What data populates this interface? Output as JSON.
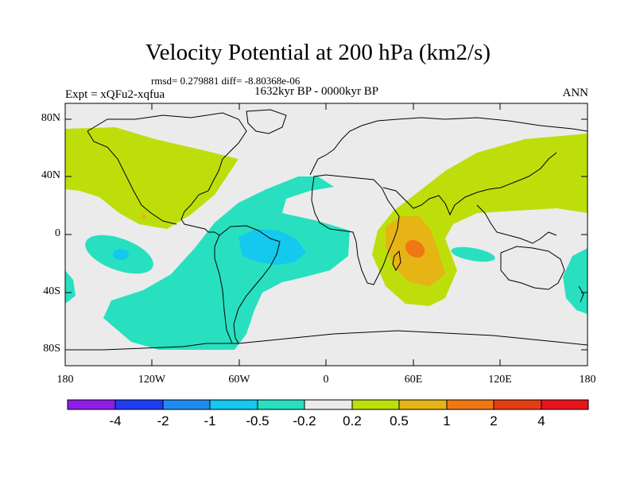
{
  "title": "Velocity Potential at 200 hPa (km2/s)",
  "stats": "rmsd= 0.279881 diff= -8.80368e-06",
  "period": "1632kyr BP - 0000kyr BP",
  "experiment": "Expt = xQFu2-xqfua",
  "season": "ANN",
  "lat_labels": [
    "80N",
    "40N",
    "0",
    "40S",
    "80S"
  ],
  "lon_labels": [
    "180",
    "120W",
    "60W",
    "0",
    "60E",
    "120E",
    "180"
  ],
  "colorbar": {
    "labels": [
      "-4",
      "-2",
      "-1",
      "-0.5",
      "-0.2",
      "0.2",
      "0.5",
      "1",
      "2",
      "4"
    ],
    "colors": [
      "#8c1ee8",
      "#1e3cf0",
      "#1e8cf0",
      "#14c8ee",
      "#28e0c0",
      "#ebebeb",
      "#bede0c",
      "#e6b414",
      "#f07814",
      "#e63c14",
      "#e8141e"
    ]
  },
  "fill_colors": {
    "neutral": "#ebebeb",
    "neg_weak": "#28e0c0",
    "neg_mid": "#14c8ee",
    "pos_weak": "#bede0c",
    "pos_mid": "#e6b414",
    "pos_strong": "#f07814"
  }
}
